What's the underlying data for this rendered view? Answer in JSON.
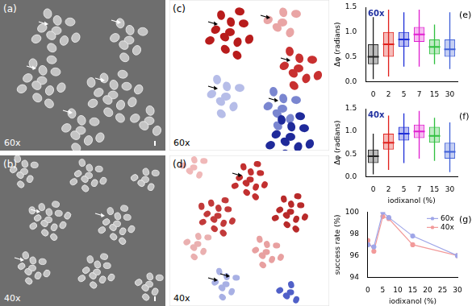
{
  "figure": {
    "images": [
      {
        "label": "(a)",
        "magnification": "60x"
      },
      {
        "label": "(b)",
        "magnification": "40x"
      },
      {
        "label": "(c)",
        "magnification": "60x"
      },
      {
        "label": "(d)",
        "magnification": "40x"
      }
    ]
  },
  "chart_data": [
    {
      "type": "box",
      "panel_label": "(e)",
      "annotation": "60x",
      "y_label": "Δφ (radians)",
      "categories": [
        0,
        2,
        5,
        7,
        15,
        30
      ],
      "colors": [
        "#222222",
        "#e0201c",
        "#2030d8",
        "#e020d0",
        "#30c040",
        "#4060d8"
      ],
      "min": [
        0.05,
        0.1,
        0.3,
        0.3,
        0.35,
        0.25
      ],
      "q1": [
        0.35,
        0.5,
        0.7,
        0.8,
        0.55,
        0.5
      ],
      "median": [
        0.5,
        0.75,
        0.85,
        0.95,
        0.7,
        0.65
      ],
      "q3": [
        0.75,
        1.0,
        1.0,
        1.1,
        0.85,
        0.85
      ],
      "max": [
        1.3,
        1.45,
        1.4,
        1.45,
        1.15,
        1.4
      ],
      "ylim": [
        0,
        1.5
      ],
      "yticks": [
        {
          "value": 0,
          "label": "0.0"
        },
        0.5,
        {
          "value": 1,
          "label": "1.0"
        },
        1.5
      ],
      "grid": false
    },
    {
      "type": "box",
      "panel_label": "(f)",
      "annotation": "40x",
      "y_label": "Δφ (radians)",
      "x_label": "iodixanol (%)",
      "categories": [
        0,
        2,
        5,
        7,
        15,
        30
      ],
      "colors": [
        "#222222",
        "#e0201c",
        "#2030d8",
        "#e020d0",
        "#30c040",
        "#4060d8"
      ],
      "min": [
        0.05,
        0.15,
        0.3,
        0.4,
        0.35,
        0.1
      ],
      "q1": [
        0.3,
        0.6,
        0.8,
        0.85,
        0.75,
        0.4
      ],
      "median": [
        0.45,
        0.75,
        0.95,
        1.0,
        0.9,
        0.55
      ],
      "q3": [
        0.6,
        0.95,
        1.1,
        1.15,
        1.1,
        0.75
      ],
      "max": [
        0.95,
        1.35,
        1.4,
        1.45,
        1.3,
        1.2
      ],
      "ylim": [
        0,
        1.5
      ],
      "yticks": [
        {
          "value": 0,
          "label": "0.0"
        },
        0.5,
        {
          "value": 1,
          "label": "1.0"
        },
        1.5
      ],
      "grid": false
    },
    {
      "type": "line",
      "panel_label": "(g)",
      "x_label": "iodixanol (%)",
      "y_label": "success rate (%)",
      "x": [
        0,
        2,
        5,
        7,
        15,
        30
      ],
      "series": [
        {
          "name": "60x",
          "color": "#9fa6e8",
          "values": [
            97.0,
            96.8,
            100,
            99.5,
            97.8,
            96.0
          ]
        },
        {
          "name": "40x",
          "color": "#f29a9a",
          "values": [
            97.4,
            96.4,
            99.6,
            99.4,
            97.0,
            96.0
          ]
        }
      ],
      "xlim": [
        0,
        30
      ],
      "xticks": [
        0,
        5,
        10,
        15,
        20,
        25,
        30
      ],
      "ylim": [
        94,
        100
      ],
      "yticks": [
        94,
        96,
        98,
        100
      ],
      "legend": "upper right",
      "marker": "circle",
      "grid": false
    }
  ]
}
